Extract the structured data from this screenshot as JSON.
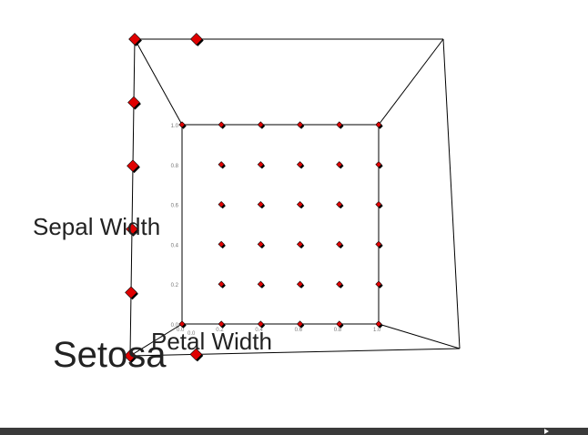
{
  "chart_data": {
    "type": "scatter",
    "projection": "3d",
    "title": "Setosa",
    "xlabel": "Petal Width",
    "ylabel": "Sepal Width",
    "xlim": [
      0,
      1
    ],
    "ylim": [
      0,
      1
    ],
    "zlim": [
      0,
      1
    ],
    "x_ticks": [
      "0.0",
      "0.2",
      "0.4",
      "0.6",
      "0.8",
      "1.0"
    ],
    "y_ticks": [
      "0.0",
      "0.2",
      "0.4",
      "0.6",
      "0.8",
      "1.0"
    ],
    "z_ticks": [
      "0.0"
    ],
    "grid": false,
    "marker": "diamond",
    "marker_color": "#e00000",
    "box_color": "#000000",
    "series": [
      {
        "values": [
          {
            "x": 0.0,
            "y": 0.0,
            "z": 0.0
          },
          {
            "x": 0.0,
            "y": 1.0,
            "z": 0.0
          },
          {
            "x": 0.2,
            "y": 0.0,
            "z": 0.0
          },
          {
            "x": 0.2,
            "y": 0.2,
            "z": 0.0
          },
          {
            "x": 0.2,
            "y": 0.4,
            "z": 0.0
          },
          {
            "x": 0.2,
            "y": 0.6,
            "z": 0.0
          },
          {
            "x": 0.2,
            "y": 0.8,
            "z": 0.0
          },
          {
            "x": 0.2,
            "y": 1.0,
            "z": 0.0
          },
          {
            "x": 0.4,
            "y": 0.0,
            "z": 0.0
          },
          {
            "x": 0.4,
            "y": 0.2,
            "z": 0.0
          },
          {
            "x": 0.4,
            "y": 0.4,
            "z": 0.0
          },
          {
            "x": 0.4,
            "y": 0.6,
            "z": 0.0
          },
          {
            "x": 0.4,
            "y": 0.8,
            "z": 0.0
          },
          {
            "x": 0.4,
            "y": 1.0,
            "z": 0.0
          },
          {
            "x": 0.6,
            "y": 0.0,
            "z": 0.0
          },
          {
            "x": 0.6,
            "y": 0.2,
            "z": 0.0
          },
          {
            "x": 0.6,
            "y": 0.4,
            "z": 0.0
          },
          {
            "x": 0.6,
            "y": 0.6,
            "z": 0.0
          },
          {
            "x": 0.6,
            "y": 0.8,
            "z": 0.0
          },
          {
            "x": 0.6,
            "y": 1.0,
            "z": 0.0
          },
          {
            "x": 0.8,
            "y": 0.0,
            "z": 0.0
          },
          {
            "x": 0.8,
            "y": 0.2,
            "z": 0.0
          },
          {
            "x": 0.8,
            "y": 0.4,
            "z": 0.0
          },
          {
            "x": 0.8,
            "y": 0.6,
            "z": 0.0
          },
          {
            "x": 0.8,
            "y": 0.8,
            "z": 0.0
          },
          {
            "x": 0.8,
            "y": 1.0,
            "z": 0.0
          },
          {
            "x": 1.0,
            "y": 0.0,
            "z": 0.0
          },
          {
            "x": 1.0,
            "y": 0.2,
            "z": 0.0
          },
          {
            "x": 1.0,
            "y": 0.4,
            "z": 0.0
          },
          {
            "x": 1.0,
            "y": 0.6,
            "z": 0.0
          },
          {
            "x": 1.0,
            "y": 0.8,
            "z": 0.0
          },
          {
            "x": 1.0,
            "y": 1.0,
            "z": 0.0
          },
          {
            "x": 0.0,
            "y": 0.0,
            "z": 1.0
          },
          {
            "x": 0.0,
            "y": 0.2,
            "z": 1.0
          },
          {
            "x": 0.0,
            "y": 0.4,
            "z": 1.0
          },
          {
            "x": 0.0,
            "y": 0.6,
            "z": 1.0
          },
          {
            "x": 0.0,
            "y": 0.8,
            "z": 1.0
          },
          {
            "x": 0.0,
            "y": 1.0,
            "z": 1.0
          },
          {
            "x": 0.2,
            "y": 1.0,
            "z": 1.0
          },
          {
            "x": 0.2,
            "y": 0.0,
            "z": 1.0
          }
        ]
      }
    ]
  }
}
